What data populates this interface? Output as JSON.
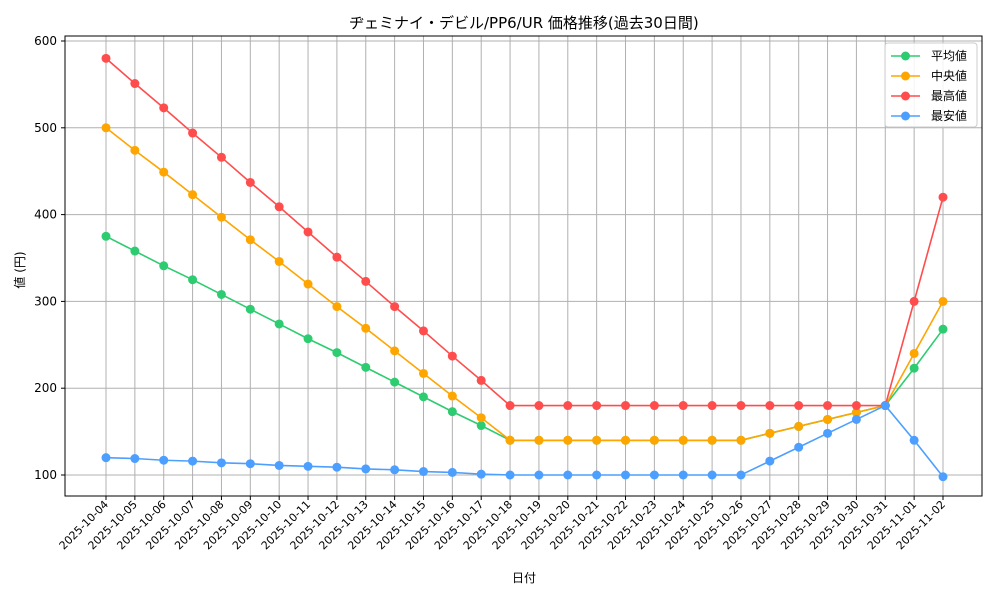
{
  "chart_data": {
    "type": "line",
    "title": "ヂェミナイ・デビル/PP6/UR 価格推移(過去30日間)",
    "xlabel": "日付",
    "ylabel": "値 (円)",
    "ylim": [
      73,
      605
    ],
    "yticks": [
      100,
      200,
      300,
      400,
      500,
      600
    ],
    "grid": true,
    "legend_position": "upper right",
    "categories": [
      "2025-10-04",
      "2025-10-05",
      "2025-10-06",
      "2025-10-07",
      "2025-10-08",
      "2025-10-09",
      "2025-10-10",
      "2025-10-11",
      "2025-10-12",
      "2025-10-13",
      "2025-10-14",
      "2025-10-15",
      "2025-10-16",
      "2025-10-17",
      "2025-10-18",
      "2025-10-19",
      "2025-10-20",
      "2025-10-21",
      "2025-10-22",
      "2025-10-23",
      "2025-10-24",
      "2025-10-25",
      "2025-10-26",
      "2025-10-27",
      "2025-10-28",
      "2025-10-29",
      "2025-10-30",
      "2025-10-31",
      "2025-11-01",
      "2025-11-02"
    ],
    "series": [
      {
        "name": "平均値",
        "color": "#2ecc71",
        "values": [
          375,
          358,
          341,
          325,
          308,
          291,
          274,
          257,
          241,
          224,
          207,
          190,
          173,
          157,
          140,
          140,
          140,
          140,
          140,
          140,
          140,
          140,
          140,
          148,
          156,
          164,
          172,
          180,
          223,
          268
        ]
      },
      {
        "name": "中央値",
        "color": "#ffa500",
        "values": [
          500,
          474,
          449,
          423,
          397,
          371,
          346,
          320,
          294,
          269,
          243,
          217,
          191,
          166,
          140,
          140,
          140,
          140,
          140,
          140,
          140,
          140,
          140,
          148,
          156,
          164,
          172,
          180,
          240,
          300
        ]
      },
      {
        "name": "最高値",
        "color": "#ff4d4d",
        "values": [
          580,
          551,
          523,
          494,
          466,
          437,
          409,
          380,
          351,
          323,
          294,
          266,
          237,
          209,
          180,
          180,
          180,
          180,
          180,
          180,
          180,
          180,
          180,
          180,
          180,
          180,
          180,
          180,
          300,
          420
        ]
      },
      {
        "name": "最安値",
        "color": "#4d9fff",
        "values": [
          120,
          119,
          117,
          116,
          114,
          113,
          111,
          110,
          109,
          107,
          106,
          104,
          103,
          101,
          100,
          100,
          100,
          100,
          100,
          100,
          100,
          100,
          100,
          116,
          132,
          148,
          164,
          180,
          140,
          98
        ]
      }
    ]
  }
}
